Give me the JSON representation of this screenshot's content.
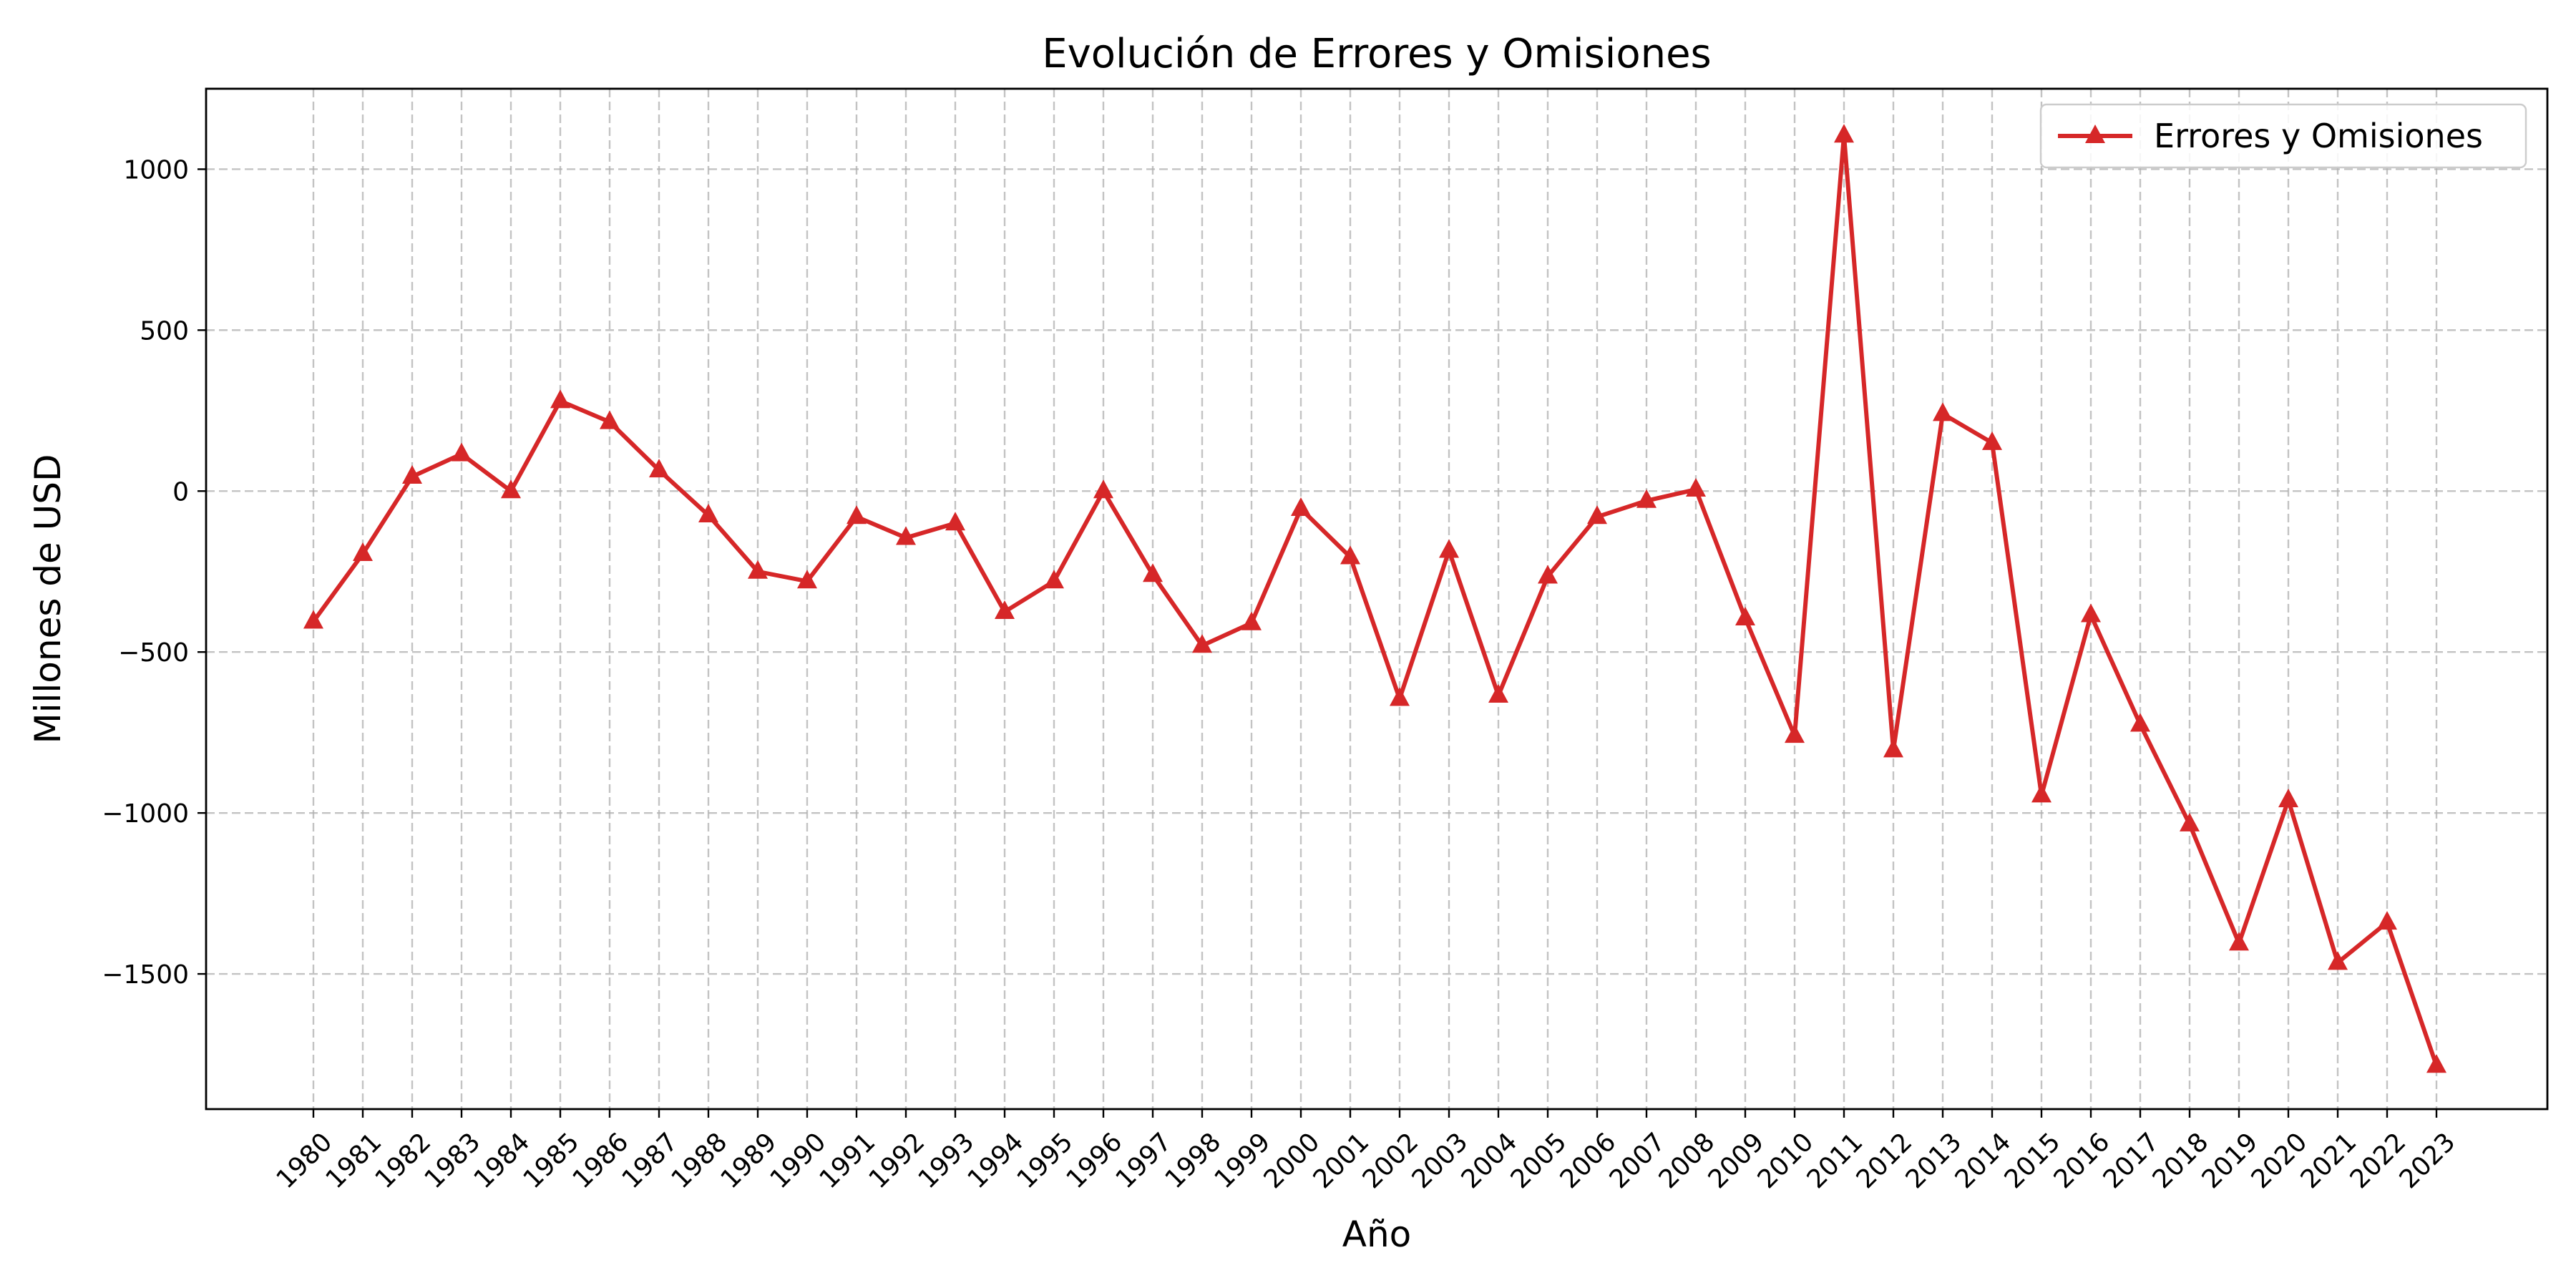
{
  "chart_data": {
    "type": "line",
    "title": "Evolución de Errores y Omisiones",
    "xlabel": "Año",
    "ylabel": "Millones de USD",
    "ylim": [
      -1920,
      1250
    ],
    "yticks": [
      1000,
      500,
      0,
      -500,
      -1000,
      -1500
    ],
    "ytick_labels": [
      "1000",
      "500",
      "0",
      "−500",
      "−1000",
      "−1500"
    ],
    "grid": true,
    "legend_position": "top-right",
    "line_color": "#d62728",
    "marker": "triangle-up",
    "categories": [
      "1980",
      "1981",
      "1982",
      "1983",
      "1984",
      "1985",
      "1986",
      "1987",
      "1988",
      "1989",
      "1990",
      "1991",
      "1992",
      "1993",
      "1994",
      "1995",
      "1996",
      "1997",
      "1998",
      "1999",
      "2000",
      "2001",
      "2002",
      "2003",
      "2004",
      "2005",
      "2006",
      "2007",
      "2008",
      "2009",
      "2010",
      "2011",
      "2012",
      "2013",
      "2014",
      "2015",
      "2016",
      "2017",
      "2018",
      "2019",
      "2020",
      "2021",
      "2022",
      "2023"
    ],
    "series": [
      {
        "name": "Errores y Omisiones",
        "values": [
          -405,
          -195,
          45,
          115,
          0,
          280,
          215,
          65,
          -75,
          -250,
          -280,
          -80,
          -145,
          -100,
          -375,
          -280,
          0,
          -260,
          -480,
          -410,
          -55,
          -205,
          -645,
          -185,
          -635,
          -265,
          -80,
          -30,
          5,
          -395,
          -760,
          1105,
          -805,
          240,
          150,
          -945,
          -385,
          -725,
          -1035,
          -1405,
          -960,
          -1465,
          -1340,
          -1785
        ]
      }
    ]
  }
}
